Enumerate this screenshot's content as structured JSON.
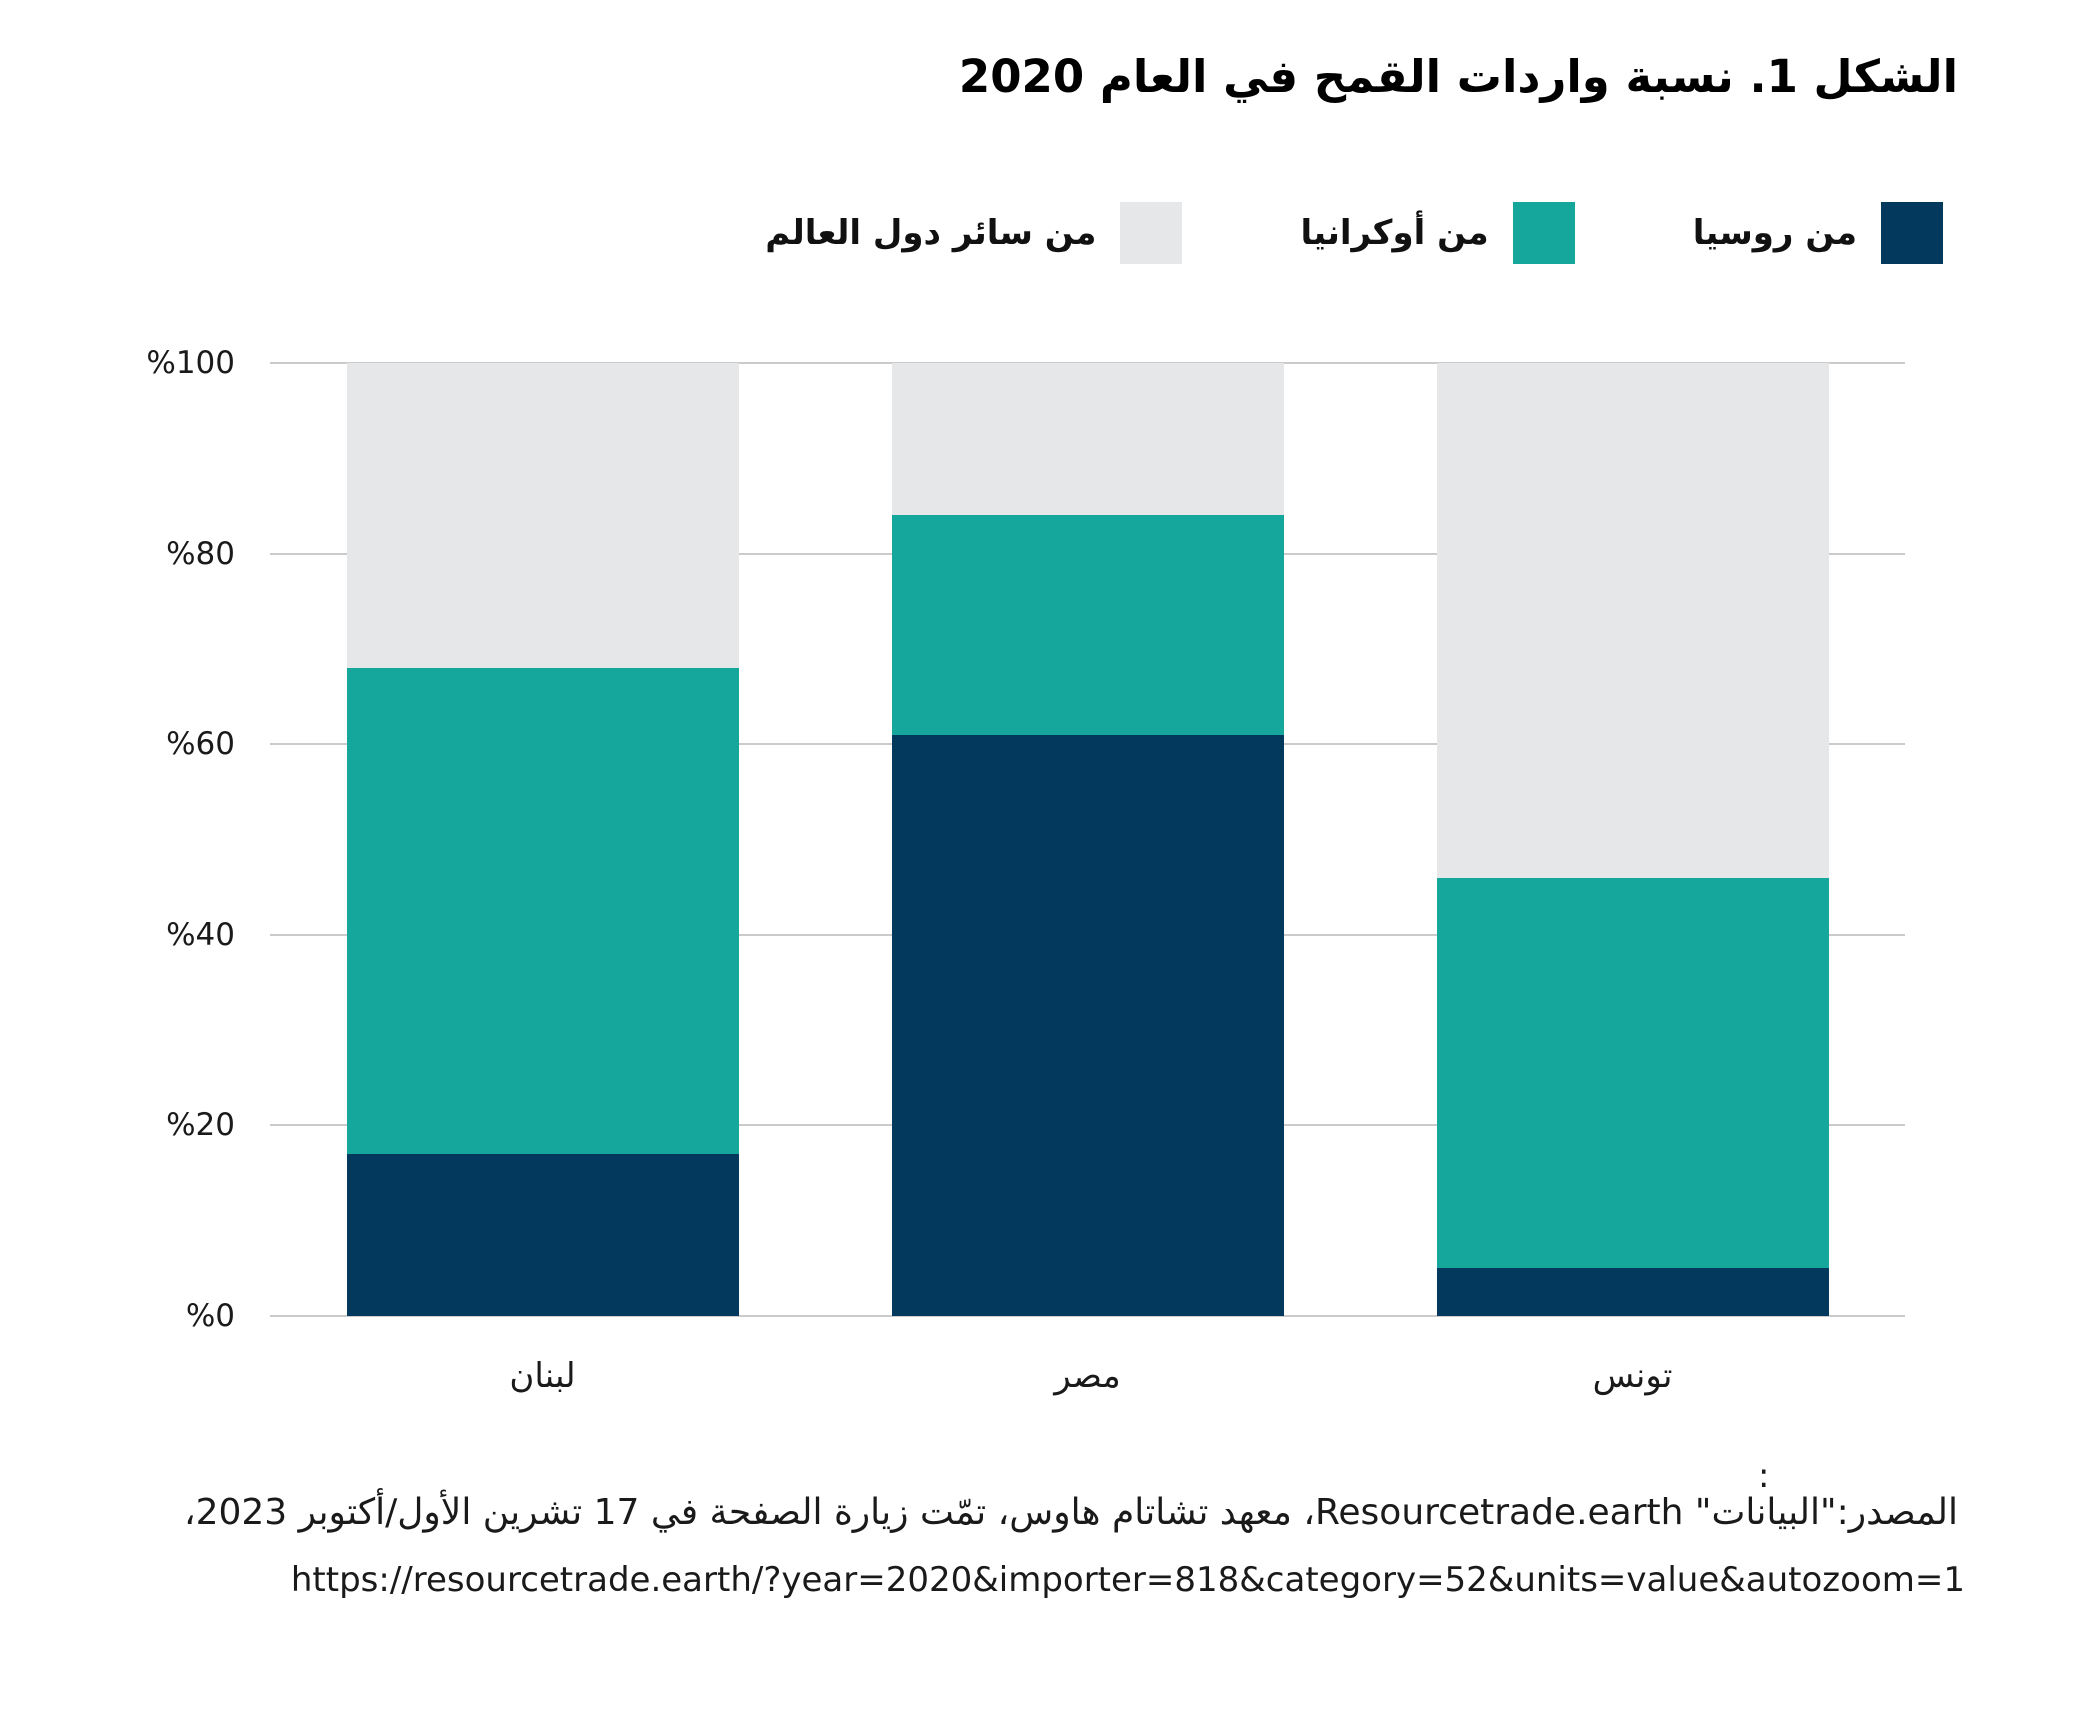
{
  "title": "الشكل 1. نسبة واردات القمح في العام 2020",
  "legend": {
    "items": [
      {
        "label": "من روسيا",
        "color": "#04395E"
      },
      {
        "label": "من أوكرانيا",
        "color": "#16A79C"
      },
      {
        "label": "من سائر دول العالم",
        "color": "#E6E7E8"
      }
    ]
  },
  "chart_data": {
    "type": "bar",
    "stacked": true,
    "title": "الشكل 1. نسبة واردات القمح في العام 2020",
    "categories": [
      "لبنان",
      "مصر",
      "تونس"
    ],
    "series": [
      {
        "name": "من روسيا",
        "color": "#04395E",
        "values": [
          17,
          61,
          5
        ]
      },
      {
        "name": "من أوكرانيا",
        "color": "#16A79C",
        "values": [
          51,
          23,
          41
        ]
      },
      {
        "name": "من سائر دول العالم",
        "color": "#E6E7E8",
        "values": [
          32,
          16,
          54
        ]
      }
    ],
    "xlabel": "",
    "ylabel": "",
    "ylim": [
      0,
      100
    ],
    "unit": "%",
    "y_ticks": [
      "%0",
      "%20",
      "%40",
      "%60",
      "%80",
      "%100"
    ],
    "grid": true,
    "legend_position": "top"
  },
  "source": {
    "colon": ":",
    "line1": "المصدر:\"البيانات\" Resourcetrade.earth، معهد تشاتام هاوس، تمّت زيارة الصفحة في 17 تشرين الأول/أكتوبر 2023،",
    "url": "https://resourcetrade.earth/?year=2020&importer=818&category=52&units=value&autozoom=1"
  },
  "colors": {
    "russia": "#04395E",
    "ukraine": "#16A79C",
    "rest_of_world": "#E6E7E8",
    "gridline": "#CBCBCB",
    "text": "#1A1A1A",
    "background": "#FFFFFF"
  }
}
